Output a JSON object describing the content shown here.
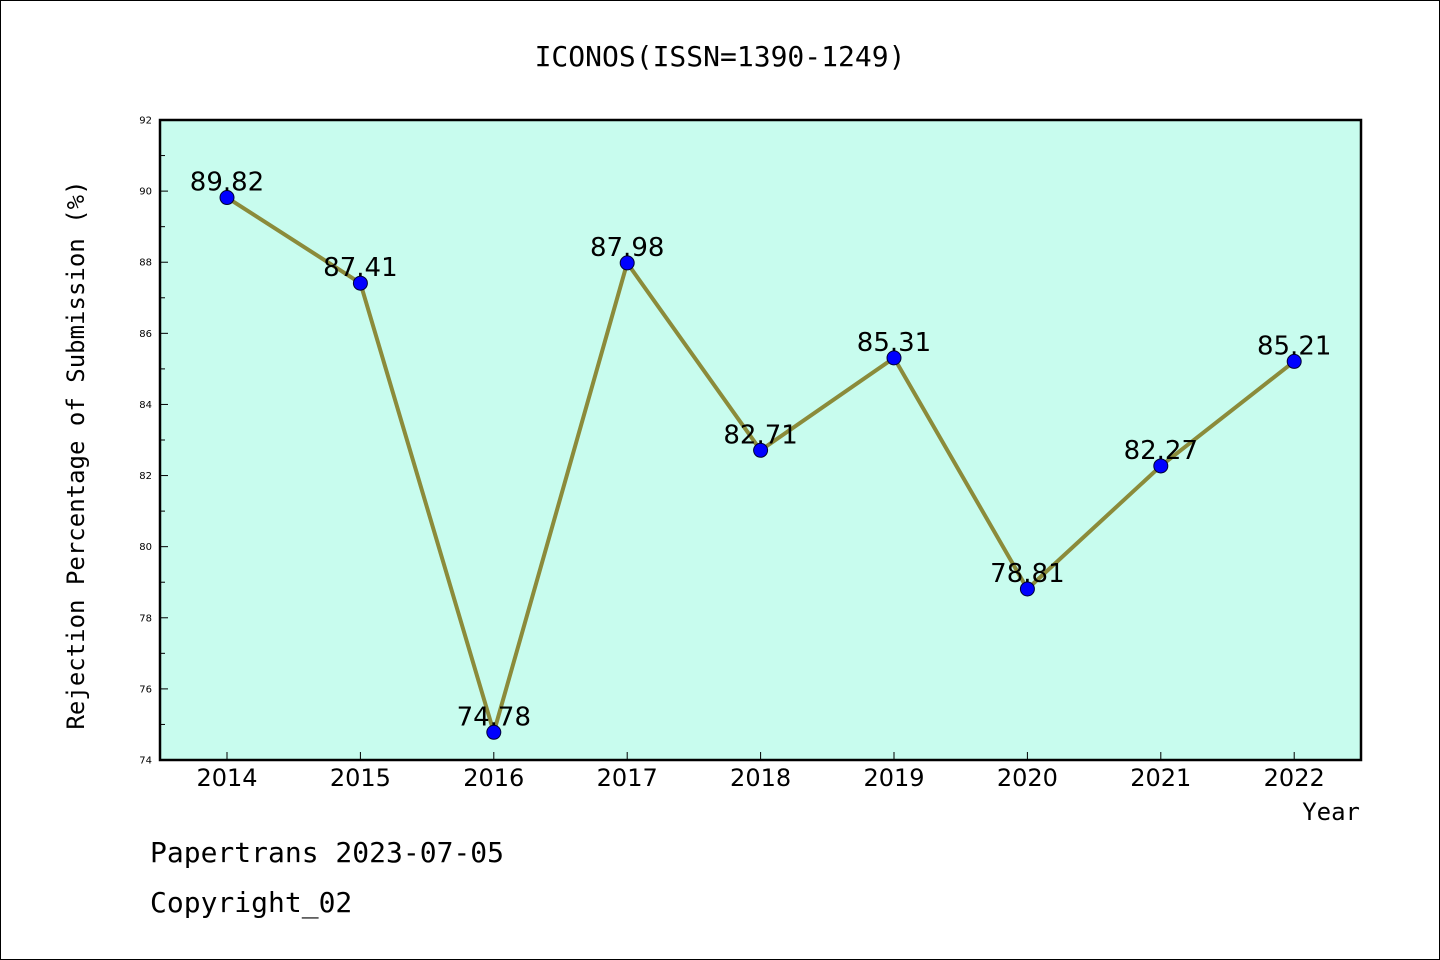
{
  "chart_data": {
    "type": "line",
    "title": "ICONOS(ISSN=1390-1249)",
    "xlabel": "Year",
    "ylabel": "Rejection Percentage of Submission (%)",
    "categories": [
      "2014",
      "2015",
      "2016",
      "2017",
      "2018",
      "2019",
      "2020",
      "2021",
      "2022"
    ],
    "values": [
      89.82,
      87.41,
      74.78,
      87.98,
      82.71,
      85.31,
      78.81,
      82.27,
      85.21
    ],
    "data_labels": [
      "89.82",
      "87.41",
      "74.78",
      "87.98",
      "82.71",
      "85.31",
      "78.81",
      "82.27",
      "85.21"
    ],
    "ylim": [
      74,
      92
    ],
    "yticks": [
      74,
      76,
      78,
      80,
      82,
      84,
      86,
      88,
      90,
      92
    ],
    "grid": false,
    "colors": {
      "plot_background": "#c8fcee",
      "line": "#8b8b3a",
      "marker": "#0000ff"
    }
  },
  "footer": {
    "source": "Papertrans 2023-07-05",
    "copyright": "Copyright_02"
  }
}
